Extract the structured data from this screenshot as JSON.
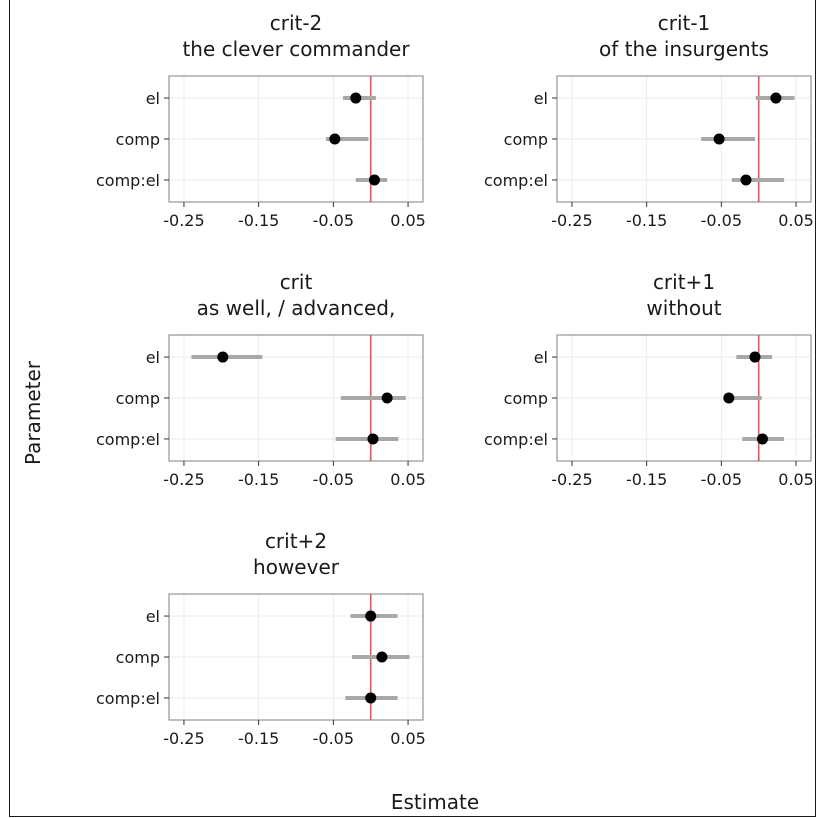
{
  "chart_data": {
    "type": "scatter",
    "subtype": "point-range forest plot, faceted",
    "xlabel": "Estimate",
    "ylabel": "Parameter",
    "xlim": [
      -0.27,
      0.07
    ],
    "x_ticks": [
      "-0.25",
      "-0.15",
      "-0.05",
      "0.05"
    ],
    "x_tick_values": [
      -0.25,
      -0.15,
      -0.05,
      0.05
    ],
    "reference_line": {
      "x": 0,
      "color": "#e8545c"
    },
    "categories": [
      "el",
      "comp",
      "comp:el"
    ],
    "grid": true,
    "point_color": "#000000",
    "interval_color": "#a8a8a8",
    "panels": [
      {
        "title_line1": "crit-2",
        "title_line2": "the clever commander",
        "estimates": [
          {
            "parameter": "el",
            "mean": -0.02,
            "lower": -0.037,
            "upper": 0.007
          },
          {
            "parameter": "comp",
            "mean": -0.048,
            "lower": -0.06,
            "upper": -0.003
          },
          {
            "parameter": "comp:el",
            "mean": 0.005,
            "lower": -0.02,
            "upper": 0.022
          }
        ]
      },
      {
        "title_line1": "crit-1",
        "title_line2": "of the insurgents",
        "estimates": [
          {
            "parameter": "el",
            "mean": 0.023,
            "lower": -0.004,
            "upper": 0.048
          },
          {
            "parameter": "comp",
            "mean": -0.053,
            "lower": -0.077,
            "upper": -0.005
          },
          {
            "parameter": "comp:el",
            "mean": -0.017,
            "lower": -0.036,
            "upper": 0.034
          }
        ]
      },
      {
        "title_line1": "crit",
        "title_line2": "as well, / advanced,",
        "estimates": [
          {
            "parameter": "el",
            "mean": -0.198,
            "lower": -0.24,
            "upper": -0.145
          },
          {
            "parameter": "comp",
            "mean": 0.022,
            "lower": -0.04,
            "upper": 0.047
          },
          {
            "parameter": "comp:el",
            "mean": 0.003,
            "lower": -0.047,
            "upper": 0.037
          }
        ]
      },
      {
        "title_line1": "crit+1",
        "title_line2": "without",
        "estimates": [
          {
            "parameter": "el",
            "mean": -0.005,
            "lower": -0.03,
            "upper": 0.018
          },
          {
            "parameter": "comp",
            "mean": -0.04,
            "lower": -0.047,
            "upper": 0.004
          },
          {
            "parameter": "comp:el",
            "mean": 0.005,
            "lower": -0.022,
            "upper": 0.034
          }
        ]
      },
      {
        "title_line1": "crit+2",
        "title_line2": "however",
        "estimates": [
          {
            "parameter": "el",
            "mean": 0.0,
            "lower": -0.027,
            "upper": 0.036
          },
          {
            "parameter": "comp",
            "mean": 0.015,
            "lower": -0.025,
            "upper": 0.052
          },
          {
            "parameter": "comp:el",
            "mean": 0.0,
            "lower": -0.034,
            "upper": 0.036
          }
        ]
      }
    ]
  }
}
